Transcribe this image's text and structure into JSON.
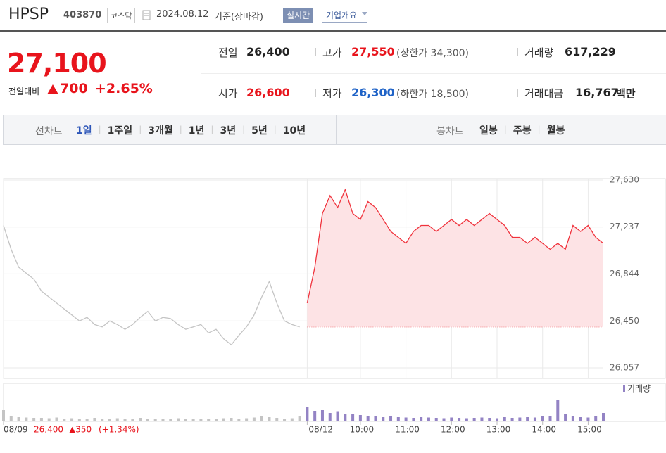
{
  "header": {
    "name": "HPSP",
    "code": "403870",
    "market": "코스닥",
    "date": "2024.08.12",
    "basis": "기준(장마감)",
    "realtime": "실시간",
    "company": "기업개요"
  },
  "quote": {
    "price": "27,100",
    "change_label": "전일대비",
    "change": "700",
    "rate": "+2.65%",
    "table": [
      [
        {
          "label": "전일",
          "value": "26,400"
        },
        {
          "label": "고가",
          "value": "27,550",
          "limit": "(상한가 34,300)"
        },
        {
          "label": "거래량",
          "value": "617,229"
        }
      ],
      [
        {
          "label": "시가",
          "value": "26,600"
        },
        {
          "label": "저가",
          "value": "26,300",
          "limit": "(하한가 18,500)"
        },
        {
          "label": "거래대금",
          "value": "16,767",
          "unit": "백만"
        }
      ]
    ]
  },
  "tabs": {
    "line_label": "선차트",
    "line": [
      "1일",
      "1주일",
      "3개월",
      "1년",
      "3년",
      "5년",
      "10년"
    ],
    "candle_label": "봉차트",
    "candle": [
      "일봉",
      "주봉",
      "월봉"
    ]
  },
  "chart_data": [
    {
      "type": "line",
      "xlim": [
        0,
        79
      ],
      "xticks": [
        {
          "value": 0,
          "label": "08/09"
        },
        {
          "value": 40,
          "label": "08/12"
        },
        {
          "value": 47,
          "label": "10:00"
        },
        {
          "value": 53,
          "label": "11:00"
        },
        {
          "value": 59,
          "label": "12:00"
        },
        {
          "value": 65,
          "label": "13:00"
        },
        {
          "value": 71,
          "label": "14:00"
        },
        {
          "value": 77,
          "label": "15:00"
        }
      ],
      "ylim": [
        26057,
        27630
      ],
      "yticks": [
        {
          "value": 26057,
          "label": "26,057"
        },
        {
          "value": 26450,
          "label": "26,450"
        },
        {
          "value": 26844,
          "label": "26,844"
        },
        {
          "value": 27237,
          "label": "27,237"
        },
        {
          "value": 27630,
          "label": "27,630"
        }
      ],
      "grid": true,
      "baseline": 26400,
      "footer": {
        "close": "26,400",
        "change": "▲350",
        "rate": "(+1.34%)"
      },
      "series": [
        {
          "color": "#c4c4c4",
          "values": [
            27250,
            27050,
            26900,
            26850,
            26800,
            26700,
            26650,
            26600,
            26550,
            26500,
            26450,
            26480,
            26420,
            26400,
            26450,
            26420,
            26380,
            26420,
            26480,
            26530,
            26450,
            26480,
            26470,
            26420,
            26380,
            26400,
            26420,
            26350,
            26380,
            26300,
            26250,
            26330,
            26400,
            26500,
            26650,
            26780,
            26600,
            26450,
            26420,
            26400,
            null,
            null,
            null,
            null,
            null,
            null,
            null,
            null,
            null,
            null,
            null,
            null,
            null,
            null,
            null,
            null,
            null,
            null,
            null,
            null,
            null,
            null,
            null,
            null,
            null,
            null,
            null,
            null,
            null,
            null,
            null,
            null,
            null,
            null,
            null,
            null,
            null,
            null,
            null,
            null
          ]
        },
        {
          "color": "#f0323c",
          "fill": "#fde3e5",
          "values": [
            null,
            null,
            null,
            null,
            null,
            null,
            null,
            null,
            null,
            null,
            null,
            null,
            null,
            null,
            null,
            null,
            null,
            null,
            null,
            null,
            null,
            null,
            null,
            null,
            null,
            null,
            null,
            null,
            null,
            null,
            null,
            null,
            null,
            null,
            null,
            null,
            null,
            null,
            null,
            null,
            26600,
            26900,
            27350,
            27500,
            27400,
            27550,
            27350,
            27300,
            27450,
            27400,
            27300,
            27200,
            27150,
            27100,
            27200,
            27250,
            27250,
            27200,
            27250,
            27300,
            27250,
            27300,
            27250,
            27300,
            27350,
            27300,
            27250,
            27150,
            27150,
            27100,
            27150,
            27100,
            27050,
            27100,
            27050,
            27250,
            27200,
            27250,
            27150,
            27100
          ]
        }
      ]
    },
    {
      "type": "bar",
      "legend": "거래량",
      "ylim": [
        0,
        100
      ],
      "series": [
        {
          "color": "#c4c4c4",
          "values": [
            30,
            14,
            10,
            9,
            8,
            8,
            7,
            9,
            6,
            7,
            6,
            5,
            8,
            6,
            5,
            7,
            5,
            6,
            8,
            6,
            5,
            6,
            5,
            7,
            5,
            6,
            5,
            6,
            5,
            7,
            8,
            6,
            7,
            9,
            12,
            10,
            8,
            6,
            7,
            14,
            null,
            null,
            null,
            null,
            null,
            null,
            null,
            null,
            null,
            null,
            null,
            null,
            null,
            null,
            null,
            null,
            null,
            null,
            null,
            null,
            null,
            null,
            null,
            null,
            null,
            null,
            null,
            null,
            null,
            null,
            null,
            null,
            null,
            null,
            null,
            null,
            null,
            null,
            null,
            null
          ]
        },
        {
          "color": "#9383c4",
          "values": [
            null,
            null,
            null,
            null,
            null,
            null,
            null,
            null,
            null,
            null,
            null,
            null,
            null,
            null,
            null,
            null,
            null,
            null,
            null,
            null,
            null,
            null,
            null,
            null,
            null,
            null,
            null,
            null,
            null,
            null,
            null,
            null,
            null,
            null,
            null,
            null,
            null,
            null,
            null,
            null,
            40,
            28,
            30,
            22,
            25,
            20,
            18,
            16,
            14,
            12,
            10,
            12,
            10,
            9,
            8,
            10,
            9,
            8,
            7,
            9,
            8,
            7,
            8,
            9,
            8,
            7,
            10,
            8,
            9,
            10,
            9,
            12,
            14,
            60,
            18,
            12,
            10,
            9,
            14,
            22
          ]
        }
      ]
    }
  ]
}
